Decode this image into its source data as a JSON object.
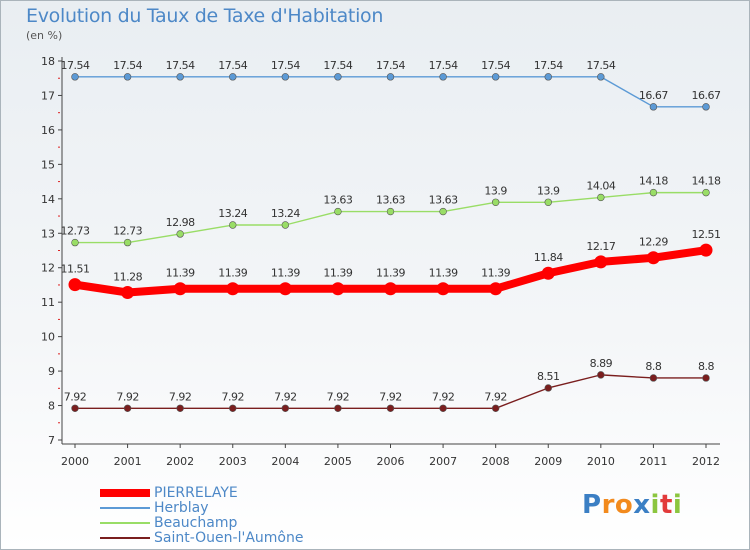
{
  "header": {
    "title": "Evolution du Taux de Taxe d'Habitation",
    "subtitle": "(en %)"
  },
  "chart_data": {
    "type": "line",
    "title": "Evolution du Taux de Taxe d'Habitation",
    "ylabel": "(en %)",
    "xlabel": "",
    "x": [
      "2000",
      "2001",
      "2002",
      "2003",
      "2004",
      "2005",
      "2006",
      "2007",
      "2008",
      "2009",
      "2010",
      "2011",
      "2012"
    ],
    "ylim": [
      7,
      18
    ],
    "yticks": [
      "7",
      "8",
      "9",
      "10",
      "11",
      "12",
      "13",
      "14",
      "15",
      "16",
      "17",
      "18"
    ],
    "grid": false,
    "legend_position": "bottom-left",
    "series": [
      {
        "name": "PIERRELAYE",
        "color": "#ff0000",
        "emphasis": true,
        "values": [
          11.51,
          11.28,
          11.39,
          11.39,
          11.39,
          11.39,
          11.39,
          11.39,
          11.39,
          11.84,
          12.17,
          12.29,
          12.51
        ],
        "labels": [
          "11.51",
          "11.28",
          "11.39",
          "11.39",
          "11.39",
          "11.39",
          "11.39",
          "11.39",
          "11.39",
          "11.84",
          "12.17",
          "12.29",
          "12.51"
        ]
      },
      {
        "name": "Herblay",
        "color": "#5c9ad6",
        "values": [
          17.54,
          17.54,
          17.54,
          17.54,
          17.54,
          17.54,
          17.54,
          17.54,
          17.54,
          17.54,
          17.54,
          16.67,
          16.67
        ],
        "labels": [
          "17.54",
          "17.54",
          "17.54",
          "17.54",
          "17.54",
          "17.54",
          "17.54",
          "17.54",
          "17.54",
          "17.54",
          "17.54",
          "16.67",
          "16.67"
        ]
      },
      {
        "name": "Beauchamp",
        "color": "#99dd66",
        "values": [
          12.73,
          12.73,
          12.98,
          13.24,
          13.24,
          13.63,
          13.63,
          13.63,
          13.9,
          13.9,
          14.04,
          14.18,
          14.18
        ],
        "labels": [
          "12.73",
          "12.73",
          "12.98",
          "13.24",
          "13.24",
          "13.63",
          "13.63",
          "13.63",
          "13.9",
          "13.9",
          "14.04",
          "14.18",
          "14.18"
        ]
      },
      {
        "name": "Saint-Ouen-l'Aumône",
        "color": "#7a1e1e",
        "values": [
          7.92,
          7.92,
          7.92,
          7.92,
          7.92,
          7.92,
          7.92,
          7.92,
          7.92,
          8.51,
          8.89,
          8.8,
          8.8
        ],
        "labels": [
          "7.92",
          "7.92",
          "7.92",
          "7.92",
          "7.92",
          "7.92",
          "7.92",
          "7.92",
          "7.92",
          "8.51",
          "8.89",
          "8.8",
          "8.8"
        ]
      }
    ]
  },
  "logo": {
    "letters": [
      "P",
      "r",
      "o",
      "x",
      "i",
      "t",
      "i"
    ],
    "colors": [
      "#3b7fc4",
      "#f28a1d",
      "#f28a1d",
      "#3b7fc4",
      "#8cc63f",
      "#e23b3b",
      "#8cc63f"
    ]
  }
}
